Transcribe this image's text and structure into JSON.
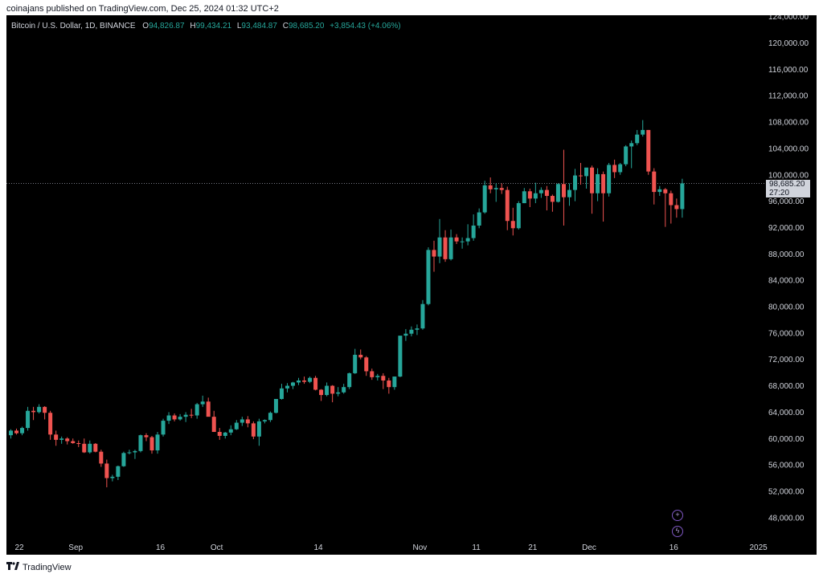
{
  "header": {
    "published_text": "coinajans published on TradingView.com, Dec 25, 2024 01:32 UTC+2"
  },
  "symbol": {
    "name": "Bitcoin / U.S. Dollar, 1D, BINANCE",
    "open_label": "O",
    "open": "94,826.87",
    "high_label": "H",
    "high": "99,434.21",
    "low_label": "L",
    "low": "93,484.87",
    "close_label": "C",
    "close": "98,685.20",
    "change": "+3,854.43 (+4.06%)"
  },
  "price_tag": {
    "price": "98,685.20",
    "countdown": "27:20"
  },
  "footer": {
    "brand": "TradingView",
    "logo": "tradingview-logo"
  },
  "buttons": [
    {
      "name": "add-indicator-button",
      "icon": "plus-circle-icon",
      "glyph": "+"
    },
    {
      "name": "lightning-button",
      "icon": "lightning-icon",
      "glyph": "ϟ"
    }
  ],
  "colors": {
    "up": "#26a69a",
    "down": "#ef5350",
    "background": "#000000",
    "axis_text": "#d1d4dc",
    "price_line": "#787b86",
    "accent": "#7e57c2"
  },
  "chart_data": {
    "type": "candlestick",
    "title": "Bitcoin / U.S. Dollar, 1D, BINANCE",
    "x_tick_labels": [
      "22",
      "Sep",
      "16",
      "Oct",
      "14",
      "Nov",
      "11",
      "21",
      "Dec",
      "16",
      "2025"
    ],
    "x_tick_days": [
      0,
      10,
      25,
      35,
      53,
      71,
      81,
      91,
      101,
      116,
      131
    ],
    "y_tick_labels": [
      "48,000.00",
      "52,000.00",
      "56,000.00",
      "60,000.00",
      "64,000.00",
      "68,000.00",
      "72,000.00",
      "76,000.00",
      "80,000.00",
      "84,000.00",
      "88,000.00",
      "92,000.00",
      "96,000.00",
      "100,000.00",
      "104,000.00",
      "108,000.00",
      "112,000.00",
      "116,000.00",
      "120,000.00",
      "124,000.00"
    ],
    "y_tick_values": [
      48000,
      52000,
      56000,
      60000,
      64000,
      68000,
      72000,
      76000,
      80000,
      84000,
      88000,
      92000,
      96000,
      100000,
      104000,
      108000,
      112000,
      116000,
      120000,
      124000
    ],
    "ylim": [
      44000,
      124000
    ],
    "last_price": 98685.2,
    "candles": [
      [
        0,
        60500,
        61400,
        60000,
        61200
      ],
      [
        1,
        61200,
        61500,
        60600,
        60800
      ],
      [
        2,
        60800,
        61800,
        60500,
        61600
      ],
      [
        3,
        61600,
        64800,
        61200,
        64200
      ],
      [
        4,
        64200,
        64800,
        62800,
        64000
      ],
      [
        5,
        64000,
        65200,
        63800,
        64800
      ],
      [
        6,
        64800,
        64900,
        62900,
        63900
      ],
      [
        7,
        63900,
        64200,
        59800,
        60600
      ],
      [
        8,
        60600,
        61200,
        58900,
        59800
      ],
      [
        9,
        59800,
        60300,
        59200,
        60000
      ],
      [
        10,
        60000,
        60200,
        59100,
        59600
      ],
      [
        11,
        59600,
        60000,
        59200,
        59300
      ],
      [
        12,
        59300,
        59700,
        58700,
        59200
      ],
      [
        13,
        59200,
        60000,
        57800,
        57900
      ],
      [
        14,
        57900,
        59700,
        57700,
        59200
      ],
      [
        15,
        59200,
        59300,
        57900,
        58000
      ],
      [
        16,
        58000,
        58300,
        55700,
        56200
      ],
      [
        17,
        56200,
        56800,
        52600,
        54000
      ],
      [
        18,
        54000,
        54500,
        53500,
        54200
      ],
      [
        19,
        54200,
        55900,
        53700,
        55800
      ],
      [
        20,
        55800,
        58000,
        55700,
        57800
      ],
      [
        21,
        57800,
        58300,
        57600,
        57900
      ],
      [
        22,
        57900,
        58300,
        56900,
        58100
      ],
      [
        23,
        58100,
        60600,
        57900,
        60500
      ],
      [
        24,
        60500,
        60800,
        59600,
        60200
      ],
      [
        25,
        60200,
        60400,
        57700,
        58200
      ],
      [
        26,
        58200,
        61000,
        57700,
        60600
      ],
      [
        27,
        60600,
        63000,
        60300,
        62700
      ],
      [
        28,
        62700,
        64000,
        62200,
        63500
      ],
      [
        29,
        63500,
        63800,
        62600,
        62900
      ],
      [
        30,
        62900,
        63700,
        62700,
        63300
      ],
      [
        31,
        63300,
        64000,
        62500,
        63600
      ],
      [
        32,
        63600,
        64500,
        63100,
        63500
      ],
      [
        33,
        63500,
        65400,
        63000,
        65200
      ],
      [
        34,
        65200,
        66500,
        64800,
        65600
      ],
      [
        35,
        65600,
        66200,
        63500,
        63300
      ],
      [
        36,
        63300,
        64200,
        61000,
        61000
      ],
      [
        37,
        61000,
        61600,
        59800,
        60400
      ],
      [
        38,
        60400,
        61000,
        60000,
        60900
      ],
      [
        39,
        60900,
        62000,
        60500,
        61400
      ],
      [
        40,
        61400,
        62800,
        61300,
        62400
      ],
      [
        41,
        62400,
        63300,
        61900,
        62900
      ],
      [
        42,
        62900,
        63400,
        61700,
        62300
      ],
      [
        43,
        62300,
        62600,
        59900,
        60300
      ],
      [
        44,
        60300,
        63000,
        58900,
        62600
      ],
      [
        45,
        62600,
        62900,
        62300,
        62800
      ],
      [
        46,
        62800,
        64100,
        62500,
        63900
      ],
      [
        47,
        63900,
        66000,
        63800,
        66000
      ],
      [
        48,
        66000,
        68300,
        65900,
        67600
      ],
      [
        49,
        67600,
        68400,
        67000,
        68000
      ],
      [
        50,
        68000,
        68600,
        67500,
        68500
      ],
      [
        51,
        68500,
        69200,
        68100,
        68800
      ],
      [
        52,
        68800,
        69400,
        68300,
        68600
      ],
      [
        53,
        68600,
        69400,
        68400,
        69200
      ],
      [
        54,
        69200,
        69500,
        67300,
        67400
      ],
      [
        55,
        67400,
        67500,
        65700,
        66600
      ],
      [
        56,
        66600,
        68500,
        66400,
        68000
      ],
      [
        57,
        68000,
        68100,
        65500,
        66800
      ],
      [
        58,
        66800,
        67800,
        66400,
        67000
      ],
      [
        59,
        67000,
        68300,
        66800,
        67800
      ],
      [
        60,
        67800,
        70000,
        67500,
        69900
      ],
      [
        61,
        69900,
        73600,
        69800,
        72700
      ],
      [
        62,
        72700,
        73500,
        72000,
        72300
      ],
      [
        63,
        72300,
        72500,
        69500,
        70200
      ],
      [
        64,
        70200,
        70600,
        68900,
        69300
      ],
      [
        65,
        69300,
        69800,
        68800,
        69500
      ],
      [
        66,
        69500,
        69900,
        67500,
        68800
      ],
      [
        67,
        68800,
        69200,
        66800,
        67800
      ],
      [
        68,
        67800,
        69400,
        67400,
        69400
      ],
      [
        69,
        69400,
        75500,
        69300,
        75600
      ],
      [
        70,
        75600,
        76600,
        74800,
        75900
      ],
      [
        71,
        75900,
        77000,
        75500,
        76500
      ],
      [
        72,
        76500,
        77300,
        75700,
        76700
      ],
      [
        73,
        76700,
        81000,
        76500,
        80400
      ],
      [
        74,
        80400,
        89000,
        80200,
        88600
      ],
      [
        75,
        88600,
        90000,
        85300,
        87600
      ],
      [
        76,
        87600,
        93300,
        86600,
        90500
      ],
      [
        77,
        90500,
        91600,
        86800,
        87200
      ],
      [
        78,
        87200,
        91700,
        87000,
        90500
      ],
      [
        79,
        90500,
        91000,
        89500,
        89900
      ],
      [
        80,
        89900,
        90500,
        88800,
        89900
      ],
      [
        81,
        89900,
        92500,
        89300,
        90400
      ],
      [
        82,
        90400,
        94000,
        90000,
        92300
      ],
      [
        83,
        92300,
        94900,
        91900,
        94300
      ],
      [
        84,
        94300,
        99100,
        94100,
        98400
      ],
      [
        85,
        98400,
        99600,
        97200,
        97800
      ],
      [
        86,
        97800,
        98700,
        95900,
        98000
      ],
      [
        87,
        98000,
        98700,
        97100,
        97700
      ],
      [
        88,
        97700,
        98200,
        91600,
        93000
      ],
      [
        89,
        93000,
        95000,
        90800,
        91900
      ],
      [
        90,
        91900,
        96000,
        91700,
        95700
      ],
      [
        91,
        95700,
        98000,
        95700,
        97500
      ],
      [
        92,
        97500,
        97900,
        95100,
        96400
      ],
      [
        93,
        96400,
        98800,
        95700,
        97200
      ],
      [
        94,
        97200,
        98100,
        96500,
        97700
      ],
      [
        95,
        97700,
        98300,
        94600,
        96800
      ],
      [
        96,
        96800,
        97000,
        94400,
        95900
      ],
      [
        97,
        95900,
        98700,
        95800,
        98600
      ],
      [
        98,
        98600,
        103800,
        92300,
        96600
      ],
      [
        99,
        96600,
        98700,
        95300,
        97700
      ],
      [
        100,
        97700,
        100900,
        96000,
        99900
      ],
      [
        101,
        99900,
        101800,
        98500,
        99800
      ],
      [
        102,
        99800,
        101000,
        97900,
        101100
      ],
      [
        103,
        101100,
        101400,
        94100,
        97200
      ],
      [
        104,
        97200,
        101000,
        96000,
        100100
      ],
      [
        105,
        100100,
        100500,
        92900,
        97200
      ],
      [
        106,
        97200,
        101800,
        96700,
        101500
      ],
      [
        107,
        101500,
        102300,
        99500,
        100400
      ],
      [
        108,
        100400,
        101800,
        100000,
        101600
      ],
      [
        109,
        101600,
        104500,
        101300,
        104300
      ],
      [
        110,
        104300,
        105200,
        101000,
        104800
      ],
      [
        111,
        104800,
        106800,
        104500,
        106100
      ],
      [
        112,
        106100,
        108300,
        105800,
        106800
      ],
      [
        113,
        106800,
        106800,
        100000,
        100500
      ],
      [
        114,
        100500,
        101000,
        95500,
        97400
      ],
      [
        115,
        97400,
        98300,
        96800,
        97800
      ],
      [
        116,
        97800,
        98000,
        92100,
        97200
      ],
      [
        117,
        97200,
        97600,
        92600,
        95400
      ],
      [
        118,
        95400,
        96400,
        93500,
        94800
      ],
      [
        119,
        94800,
        99400,
        93500,
        98700
      ]
    ]
  }
}
